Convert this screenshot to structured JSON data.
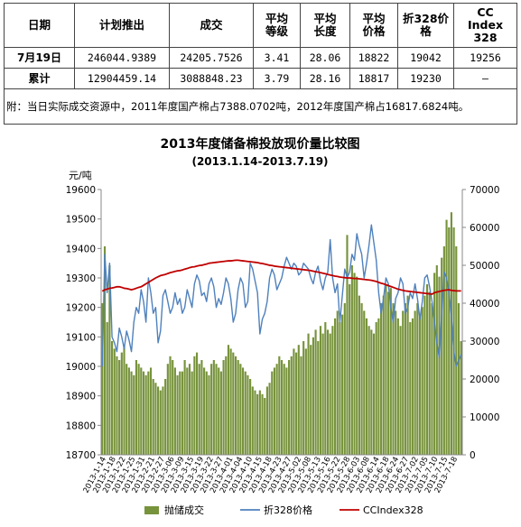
{
  "table": {
    "headers": [
      "日期",
      "计划推出",
      "成交",
      "平均\n等级",
      "平均\n长度",
      "平均\n价格",
      "折328价\n格",
      "CC\nIndex\n328"
    ],
    "rows": [
      {
        "label": "7月19日",
        "values": [
          "246044.9389",
          "24205.7526",
          "3.41",
          "28.06",
          "18822",
          "19042",
          "19256"
        ]
      },
      {
        "label": "累计",
        "values": [
          "12904459.14",
          "3088848.23",
          "3.79",
          "28.16",
          "18817",
          "19230",
          "–"
        ]
      }
    ],
    "note": "附：当日实际成交资源中，2011年度国产棉占7388.0702吨，2012年度国产棉占16817.6824吨。"
  },
  "chart_data": {
    "type": "bar+line",
    "title": "2013年度储备棉投放现价量比较图",
    "subtitle": "(2013.1.14-2013.7.19)",
    "ylabel_left": "元/吨",
    "ylim_left": [
      18700,
      19600
    ],
    "yticks_left": [
      18700,
      18800,
      18900,
      19000,
      19100,
      19200,
      19300,
      19400,
      19500,
      19600
    ],
    "ylim_right": [
      0,
      70000
    ],
    "yticks_right": [
      0,
      10000,
      20000,
      30000,
      40000,
      50000,
      60000,
      70000
    ],
    "x_tick_labels": [
      "2013-1-14",
      "2013-1-18",
      "2013-1-22",
      "2013-1-25",
      "2013-1-31",
      "2013-2-21",
      "2013-2-27",
      "2013-3-06",
      "2013-3-09",
      "2013-3-15",
      "2013-3-19",
      "2013-3-22",
      "2013-3-27",
      "2013-4-01",
      "2013-4-04",
      "2013-4-10",
      "2013-4-15",
      "2013-4-18",
      "2013-4-23",
      "2013-4-27",
      "2013-5-02",
      "2013-5-08",
      "2013-5-13",
      "2013-5-16",
      "2013-5-22",
      "2013-5-28",
      "2013-6-03",
      "2013-6-08",
      "2013-6-14",
      "2013-6-18",
      "2013-6-24",
      "2013-6-27",
      "2013-7-02",
      "2013-7-05",
      "2013-7-10",
      "2013-7-15",
      "2013-7-18"
    ],
    "grid": false,
    "legend_position": "bottom",
    "series": [
      {
        "name": "抛储成交",
        "type": "bar",
        "axis": "right",
        "color": "#77933c",
        "values": [
          40000,
          55000,
          35000,
          50000,
          30000,
          28000,
          26000,
          25000,
          27000,
          29000,
          24000,
          23000,
          22000,
          21000,
          25000,
          24000,
          23000,
          22000,
          21000,
          22000,
          23000,
          20000,
          19000,
          18000,
          17000,
          18000,
          20000,
          24000,
          26000,
          25000,
          23000,
          21000,
          22000,
          22000,
          25000,
          23000,
          24000,
          22000,
          26000,
          27000,
          24000,
          25000,
          23000,
          22000,
          21000,
          24000,
          25000,
          24000,
          23000,
          22000,
          25000,
          26000,
          29000,
          28000,
          27000,
          26000,
          25000,
          24000,
          23000,
          22000,
          21000,
          20000,
          18000,
          17000,
          16000,
          17000,
          16000,
          15000,
          18000,
          19000,
          22000,
          23000,
          24000,
          26000,
          25000,
          24000,
          23000,
          25000,
          26000,
          28000,
          27000,
          29000,
          26000,
          30000,
          28000,
          32000,
          29000,
          31000,
          33000,
          30000,
          34000,
          32000,
          35000,
          33000,
          32000,
          34000,
          36000,
          38000,
          35000,
          37000,
          40000,
          58000,
          45000,
          50000,
          48000,
          47000,
          42000,
          40000,
          38000,
          36000,
          34000,
          33000,
          32000,
          35000,
          36000,
          40000,
          42000,
          45000,
          43000,
          44000,
          40000,
          38000,
          36000,
          34000,
          38000,
          40000,
          42000,
          35000,
          36000,
          38000,
          40000,
          37000,
          39000,
          42000,
          45000,
          43000,
          40000,
          48000,
          50000,
          47000,
          52000,
          55000,
          62000,
          60000,
          64000,
          60000,
          55000,
          40000,
          30000
        ]
      },
      {
        "name": "折328价格",
        "type": "line",
        "axis": "left",
        "color": "#4f81bd",
        "values": [
          19000,
          19380,
          19250,
          19350,
          19100,
          19080,
          19050,
          19130,
          19100,
          19060,
          19120,
          19090,
          19050,
          19150,
          19200,
          19180,
          19260,
          19220,
          19150,
          19300,
          19250,
          19180,
          19200,
          19080,
          19120,
          19240,
          19260,
          19220,
          19180,
          19200,
          19250,
          19210,
          19230,
          19180,
          19200,
          19260,
          19230,
          19200,
          19280,
          19310,
          19290,
          19240,
          19250,
          19220,
          19280,
          19300,
          19270,
          19200,
          19230,
          19210,
          19250,
          19300,
          19280,
          19230,
          19150,
          19180,
          19260,
          19300,
          19280,
          19200,
          19220,
          19350,
          19330,
          19290,
          19250,
          19110,
          19160,
          19180,
          19220,
          19300,
          19330,
          19310,
          19260,
          19280,
          19300,
          19340,
          19370,
          19350,
          19330,
          19350,
          19340,
          19310,
          19320,
          19350,
          19340,
          19330,
          19300,
          19280,
          19320,
          19340,
          19290,
          19260,
          19300,
          19320,
          19430,
          19300,
          19250,
          19280,
          19150,
          19240,
          19330,
          19300,
          19320,
          19380,
          19360,
          19450,
          19410,
          19380,
          19300,
          19350,
          19410,
          19480,
          19420,
          19360,
          19250,
          19180,
          19230,
          19300,
          19280,
          19200,
          19150,
          19230,
          19250,
          19300,
          19280,
          19180,
          19200,
          19250,
          19230,
          19280,
          19230,
          19160,
          19220,
          19300,
          19310,
          19270,
          19220,
          19150,
          19080,
          19030,
          19180,
          19320,
          19300,
          19250,
          19170,
          19050,
          19000,
          19020,
          19040
        ]
      },
      {
        "name": "CCIndex328",
        "type": "line",
        "axis": "left",
        "color": "#c00000",
        "values": [
          19255,
          19260,
          19262,
          19265,
          19266,
          19268,
          19270,
          19270,
          19268,
          19265,
          19264,
          19262,
          19260,
          19262,
          19265,
          19268,
          19270,
          19275,
          19280,
          19285,
          19290,
          19295,
          19300,
          19304,
          19308,
          19310,
          19312,
          19315,
          19318,
          19320,
          19322,
          19324,
          19325,
          19327,
          19330,
          19332,
          19335,
          19337,
          19338,
          19340,
          19342,
          19343,
          19345,
          19347,
          19350,
          19351,
          19352,
          19353,
          19354,
          19355,
          19356,
          19357,
          19358,
          19358,
          19359,
          19360,
          19360,
          19359,
          19358,
          19357,
          19356,
          19355,
          19354,
          19353,
          19352,
          19350,
          19349,
          19347,
          19345,
          19343,
          19342,
          19340,
          19339,
          19338,
          19337,
          19336,
          19335,
          19334,
          19333,
          19332,
          19331,
          19330,
          19329,
          19328,
          19327,
          19326,
          19325,
          19323,
          19321,
          19320,
          19318,
          19316,
          19314,
          19312,
          19310,
          19308,
          19306,
          19305,
          19303,
          19302,
          19301,
          19300,
          19300,
          19299,
          19298,
          19298,
          19297,
          19296,
          19295,
          19294,
          19293,
          19292,
          19290,
          19288,
          19285,
          19282,
          19280,
          19277,
          19274,
          19271,
          19268,
          19265,
          19262,
          19260,
          19258,
          19256,
          19255,
          19254,
          19253,
          19252,
          19251,
          19250,
          19249,
          19248,
          19247,
          19246,
          19245,
          19250,
          19252,
          19254,
          19256,
          19258,
          19259,
          19260,
          19258,
          19257,
          19256,
          19256,
          19256
        ]
      }
    ]
  }
}
